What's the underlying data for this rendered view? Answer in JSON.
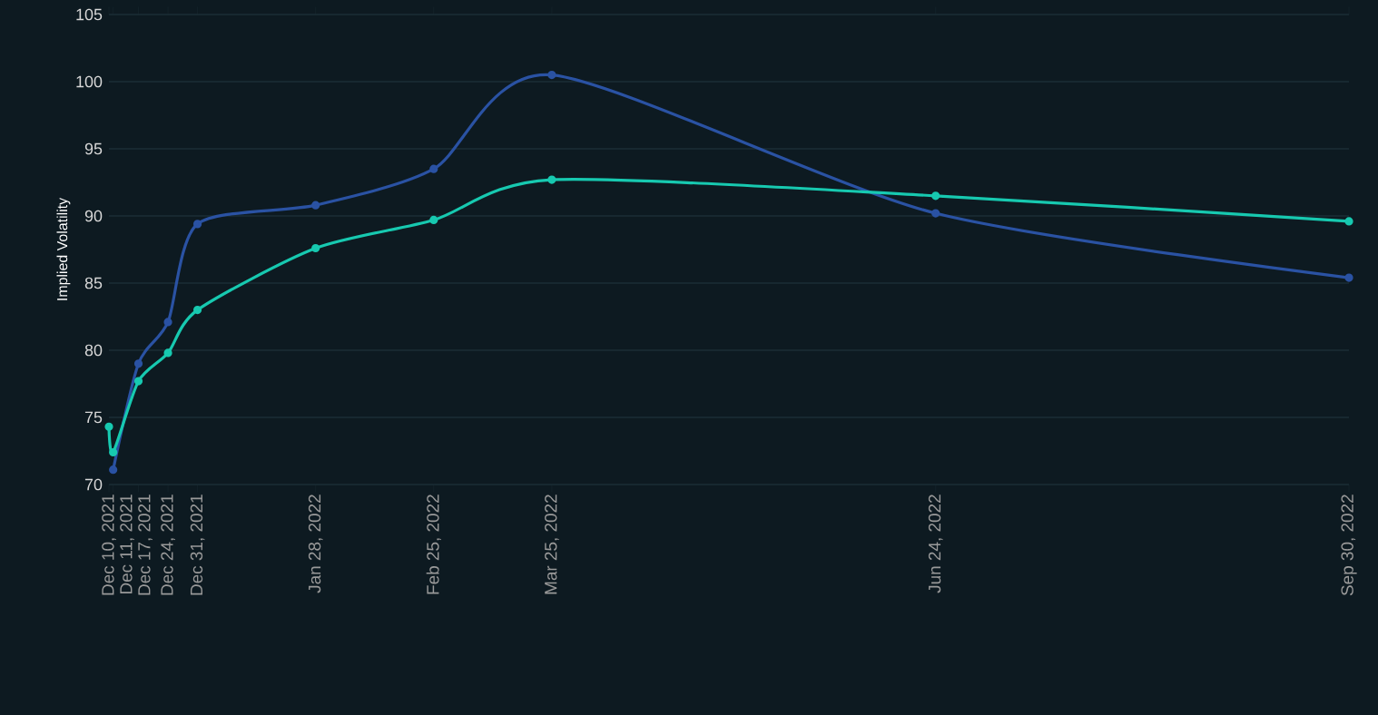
{
  "chart_data": {
    "type": "line",
    "ylabel": "Implied Volatility",
    "x": [
      "2021-12-10",
      "2021-12-11",
      "2021-12-17",
      "2021-12-24",
      "2021-12-31",
      "2022-01-28",
      "2022-02-25",
      "2022-03-25",
      "2022-06-24",
      "2022-09-30"
    ],
    "series": [
      {
        "color": "#2a52a3",
        "values": [
          null,
          71.1,
          79.0,
          82.1,
          89.4,
          90.8,
          93.5,
          100.5,
          90.2,
          85.4
        ]
      },
      {
        "color": "#17c9b0",
        "values": [
          74.3,
          72.4,
          77.7,
          79.8,
          83.0,
          87.6,
          89.7,
          92.7,
          91.5,
          89.6
        ]
      }
    ],
    "xlim": [
      "2021-12-10",
      "2022-09-30"
    ],
    "xticks": [
      {
        "value": "2021-12-10",
        "label": "Dec 10, 2021"
      },
      {
        "value": "2021-12-11",
        "label": "Dec 11, 2021"
      },
      {
        "value": "2021-12-17",
        "label": "Dec 17, 2021"
      },
      {
        "value": "2021-12-24",
        "label": "Dec 24, 2021"
      },
      {
        "value": "2021-12-31",
        "label": "Dec 31, 2021"
      },
      {
        "value": "2022-01-28",
        "label": "Jan 28, 2022"
      },
      {
        "value": "2022-02-25",
        "label": "Feb 25, 2022"
      },
      {
        "value": "2022-03-25",
        "label": "Mar 25, 2022"
      },
      {
        "value": "2022-06-24",
        "label": "Jun 24, 2022"
      },
      {
        "value": "2022-09-30",
        "label": "Sep 30, 2022"
      }
    ],
    "ylim": [
      70,
      105
    ],
    "yticks": [
      70,
      75,
      80,
      85,
      90,
      95,
      100,
      105
    ],
    "grid": "y",
    "marker": "circle",
    "line_style": "solid"
  }
}
